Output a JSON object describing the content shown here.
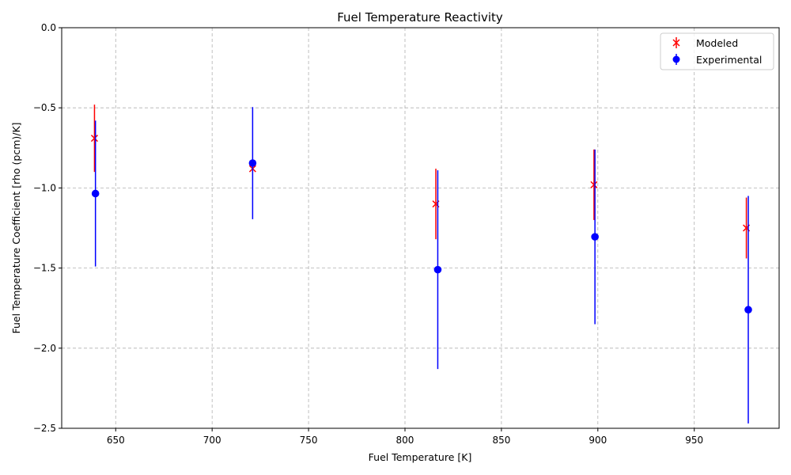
{
  "chart_data": {
    "type": "scatter",
    "title": "Fuel Temperature Reactivity",
    "xlabel": "Fuel Temperature [K]",
    "ylabel": "Fuel Temperature Coefficient [rho (pcm)/K]",
    "xlim": [
      622,
      994
    ],
    "ylim": [
      -2.5,
      0.0
    ],
    "x_ticks": [
      650,
      700,
      750,
      800,
      850,
      900,
      950
    ],
    "x_tick_labels": [
      "650",
      "700",
      "750",
      "800",
      "850",
      "900",
      "950"
    ],
    "y_ticks": [
      0.0,
      -0.5,
      -1.0,
      -1.5,
      -2.0,
      -2.5
    ],
    "y_tick_labels": [
      "0.0",
      "−0.5",
      "−1.0",
      "−1.5",
      "−2.0",
      "−2.5"
    ],
    "grid": true,
    "legend_position": "top-right",
    "series": [
      {
        "name": "Modeled",
        "color": "#ff0000",
        "marker": "x",
        "x": [
          639,
          721,
          816,
          898,
          977
        ],
        "y": [
          -0.69,
          -0.88,
          -1.1,
          -0.98,
          -1.25
        ],
        "err": [
          0.21,
          0.0,
          0.22,
          0.22,
          0.19
        ]
      },
      {
        "name": "Experimental",
        "color": "#0000ff",
        "marker": "o",
        "x": [
          639.5,
          721,
          817,
          898.5,
          978
        ],
        "y": [
          -1.035,
          -0.845,
          -1.51,
          -1.305,
          -1.76
        ],
        "err": [
          0.455,
          0.35,
          0.62,
          0.545,
          0.71
        ]
      }
    ]
  }
}
